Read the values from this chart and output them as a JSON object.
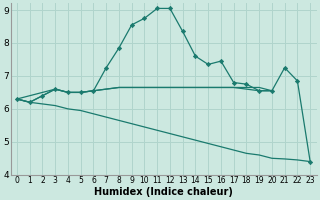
{
  "xlabel": "Humidex (Indice chaleur)",
  "bg_color": "#cce8e0",
  "grid_color": "#b0d4cc",
  "line_color": "#1a7a6e",
  "xlim": [
    -0.5,
    23.5
  ],
  "ylim": [
    4,
    9.2
  ],
  "yticks": [
    4,
    5,
    6,
    7,
    8,
    9
  ],
  "xticks": [
    0,
    1,
    2,
    3,
    4,
    5,
    6,
    7,
    8,
    9,
    10,
    11,
    12,
    13,
    14,
    15,
    16,
    17,
    18,
    19,
    20,
    21,
    22,
    23
  ],
  "lines": [
    {
      "x": [
        0,
        1,
        2,
        3,
        4,
        5,
        6,
        7,
        8,
        9,
        10,
        11,
        12,
        13,
        14,
        15,
        16,
        17,
        18,
        19,
        20,
        21,
        22,
        23
      ],
      "y": [
        6.3,
        6.2,
        6.4,
        6.6,
        6.5,
        6.5,
        6.55,
        7.25,
        7.85,
        8.55,
        8.75,
        9.05,
        9.05,
        8.35,
        7.6,
        7.35,
        7.45,
        6.8,
        6.75,
        6.55,
        6.55,
        7.25,
        6.85,
        4.4
      ],
      "marker": true
    },
    {
      "x": [
        0,
        3,
        4,
        5,
        6,
        7,
        8,
        9,
        10,
        11,
        12,
        13,
        14,
        15,
        16,
        17,
        18,
        19,
        20
      ],
      "y": [
        6.3,
        6.6,
        6.5,
        6.5,
        6.55,
        6.6,
        6.65,
        6.65,
        6.65,
        6.65,
        6.65,
        6.65,
        6.65,
        6.65,
        6.65,
        6.65,
        6.65,
        6.65,
        6.55
      ],
      "marker": false
    },
    {
      "x": [
        0,
        1,
        2,
        3,
        4,
        5,
        6,
        7,
        8,
        9,
        10,
        11,
        12,
        13,
        14,
        15,
        16,
        17,
        18,
        19,
        20
      ],
      "y": [
        6.3,
        6.2,
        6.4,
        6.6,
        6.5,
        6.5,
        6.55,
        6.6,
        6.65,
        6.65,
        6.65,
        6.65,
        6.65,
        6.65,
        6.65,
        6.65,
        6.65,
        6.65,
        6.6,
        6.55,
        6.55
      ],
      "marker": false
    },
    {
      "x": [
        0,
        1,
        2,
        3,
        4,
        5,
        6,
        7,
        8,
        9,
        10,
        11,
        12,
        13,
        14,
        15,
        16,
        17,
        18,
        19,
        20,
        21,
        22,
        23
      ],
      "y": [
        6.3,
        6.2,
        6.15,
        6.1,
        6.0,
        5.95,
        5.85,
        5.75,
        5.65,
        5.55,
        5.45,
        5.35,
        5.25,
        5.15,
        5.05,
        4.95,
        4.85,
        4.75,
        4.65,
        4.6,
        4.5,
        4.48,
        4.45,
        4.4
      ],
      "marker": false
    }
  ]
}
